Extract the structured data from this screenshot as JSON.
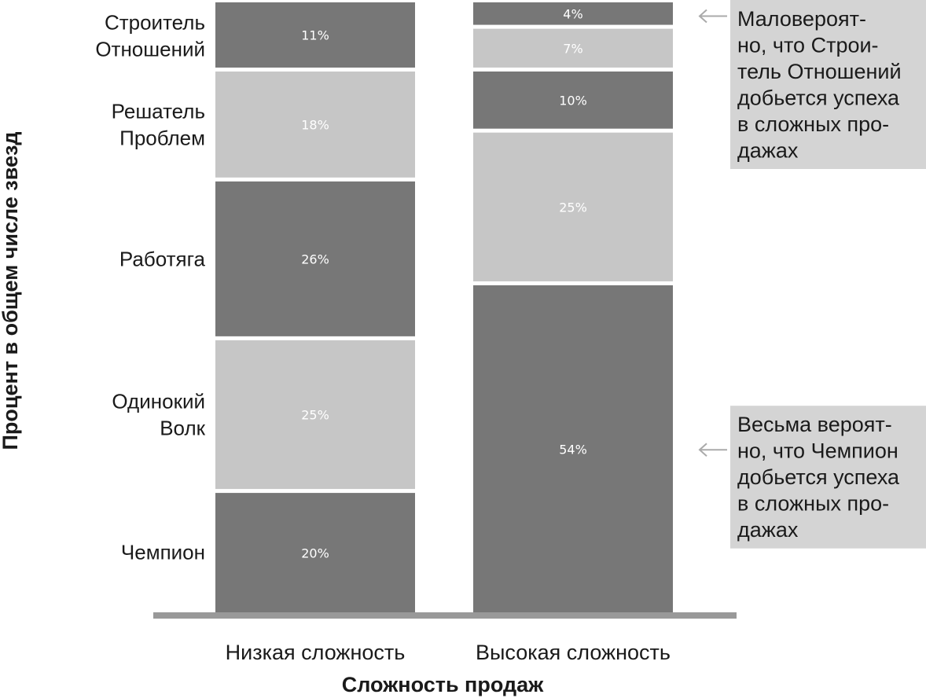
{
  "chart_data": {
    "type": "bar",
    "stacked": true,
    "categories": [
      "Низкая сложность",
      "Высокая сложность"
    ],
    "series": [
      {
        "name": "Чемпион",
        "values": [
          20,
          54
        ],
        "color": "#777777"
      },
      {
        "name": "Одинокий Волк",
        "values": [
          25,
          25
        ],
        "color": "#c6c6c6"
      },
      {
        "name": "Работяга",
        "values": [
          26,
          10
        ],
        "color": "#777777"
      },
      {
        "name": "Решатель Проблем",
        "values": [
          18,
          7
        ],
        "color": "#c6c6c6"
      },
      {
        "name": "Строитель Отношений",
        "values": [
          11,
          4
        ],
        "color": "#777777"
      }
    ],
    "series_label_lines": [
      [
        "Чемпион"
      ],
      [
        "Одинокий",
        "Волк"
      ],
      [
        "Работяга"
      ],
      [
        "Решатель",
        "Проблем"
      ],
      [
        "Строитель",
        "Отношений"
      ]
    ],
    "alt_colors_high": [
      "#777777",
      "#c6c6c6",
      "#777777",
      "#c6c6c6",
      "#777777"
    ],
    "value_suffix": "%",
    "xlabel": "Сложность продаж",
    "ylabel": "Процент в общем числе звезд",
    "title": "",
    "ylim": [
      0,
      100
    ],
    "annotations": [
      {
        "target": "Строитель Отношений",
        "lines": [
          "Маловероят-",
          "но, что Строи-",
          "тель Отношений",
          "добьется успеха",
          "в сложных про-",
          "дажах"
        ]
      },
      {
        "target": "Чемпион",
        "lines": [
          "Весьма вероят-",
          "но, что Чемпион",
          "добьется успеха",
          "в сложных про-",
          "дажах"
        ]
      }
    ]
  },
  "colors": {
    "dark_segment": "#777777",
    "light_segment": "#c6c6c6",
    "baseline": "#999999",
    "note_box": "#d4d4d4",
    "arrow": "#aaaaaa"
  }
}
